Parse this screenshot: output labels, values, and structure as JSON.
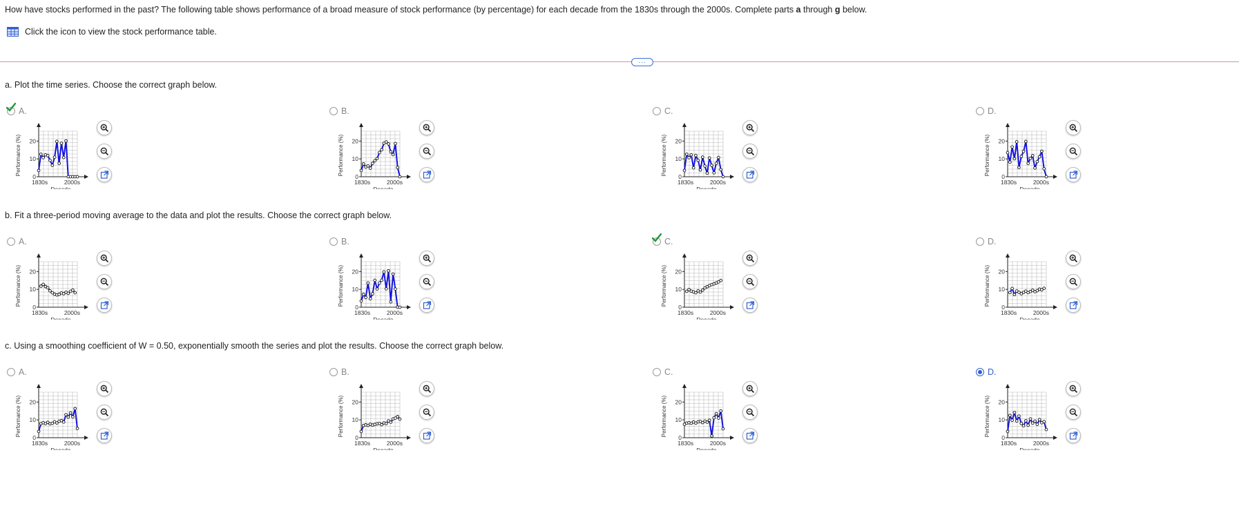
{
  "intro": {
    "before_bold": "How have stocks performed in the past? The following table shows performance of a broad measure of stock performance (by percentage) for each decade from the 1830s through the 2000s. Complete parts ",
    "bold_a": "a",
    "middle": " through ",
    "bold_g": "g",
    "after": " below."
  },
  "table_link": {
    "label": "Click the icon to view the stock performance table.",
    "icon": "table-grid-icon"
  },
  "more_button": {
    "label": "..."
  },
  "graph_labels": {
    "ylabel": "Performance (%)",
    "xlabel": "Decade",
    "x_start": "1830s",
    "x_end": "2000s",
    "y_ticks": [
      "0",
      "10",
      "20"
    ]
  },
  "colors": {
    "line": "#1414dd",
    "accent": "#2f5fd0",
    "check": "#1a9a3a"
  },
  "parts": [
    {
      "id": "a",
      "question": "a. Plot the time series. Choose the correct graph below.",
      "options": [
        {
          "label": "A.",
          "state": "correct-check",
          "chart_data": {
            "type": "line",
            "values": [
              3.5,
              12.6,
              10.7,
              12.3,
              11.9,
              9.2,
              6.4,
              11.0,
              19.8,
              7.5,
              18.8,
              10.8,
              20.1,
              0,
              0,
              0,
              0,
              0
            ]
          }
        },
        {
          "label": "B.",
          "state": "unselected",
          "chart_data": {
            "type": "line",
            "values": [
              3.5,
              7.2,
              5.5,
              6.1,
              4.8,
              7.5,
              9.0,
              10.2,
              13.6,
              15.1,
              18.8,
              19.5,
              18.4,
              14.0,
              12.4,
              18.6,
              5.2,
              0
            ]
          }
        },
        {
          "label": "C.",
          "state": "unselected",
          "chart_data": {
            "type": "line",
            "values": [
              3.5,
              12.6,
              10.7,
              12.3,
              5.0,
              11.9,
              9.2,
              3.8,
              11.0,
              6.0,
              2.0,
              10.5,
              6.4,
              2.2,
              7.5,
              10.8,
              4.0,
              0
            ]
          }
        },
        {
          "label": "D.",
          "state": "unselected",
          "chart_data": {
            "type": "line",
            "values": [
              13.5,
              8.2,
              16.7,
              10.1,
              19.6,
              5.2,
              11.4,
              14.2,
              19.8,
              7.5,
              10.3,
              11.8,
              4.9,
              8.5,
              11.2,
              14.3,
              4.5,
              0
            ]
          }
        }
      ]
    },
    {
      "id": "b",
      "question": "b. Fit a three-period moving average to the data and plot the results. Choose the correct graph below.",
      "options": [
        {
          "label": "A.",
          "state": "unselected",
          "chart_data": {
            "type": "line",
            "values": [
              null,
              11.8,
              12.8,
              11.6,
              10.9,
              9.2,
              8.1,
              7.3,
              6.9,
              7.2,
              8.0,
              7.6,
              8.4,
              7.8,
              8.9,
              9.6,
              8.1,
              null
            ]
          }
        },
        {
          "label": "B.",
          "state": "unselected",
          "chart_data": {
            "type": "line",
            "values": [
              3.5,
              7.2,
              5.5,
              13.6,
              4.8,
              7.5,
              15.1,
              10.2,
              13.6,
              15.1,
              19.8,
              10.3,
              20.4,
              3.0,
              18.6,
              10.2,
              0,
              0
            ]
          }
        },
        {
          "label": "C.",
          "state": "correct-check",
          "chart_data": {
            "type": "line",
            "values": [
              null,
              8.9,
              9.9,
              9.0,
              8.6,
              8.1,
              9.2,
              8.5,
              9.6,
              10.8,
              11.5,
              12.1,
              12.7,
              13.1,
              13.6,
              14.2,
              15.0,
              null
            ]
          }
        },
        {
          "label": "D.",
          "state": "unselected",
          "chart_data": {
            "type": "line",
            "values": [
              null,
              8.2,
              10.5,
              7.1,
              9.1,
              8.4,
              7.6,
              8.3,
              9.0,
              8.2,
              8.8,
              9.5,
              8.7,
              9.3,
              10.1,
              9.8,
              10.6,
              null
            ]
          }
        }
      ]
    },
    {
      "id": "c",
      "question": "c. Using a smoothing coefficient of W = 0.50, exponentially smooth the series and plot the results. Choose the correct graph below.",
      "options": [
        {
          "label": "A.",
          "state": "unselected",
          "chart_data": {
            "type": "line",
            "values": [
              3.5,
              7.9,
              8.4,
              7.9,
              8.6,
              7.8,
              8.1,
              8.9,
              8.3,
              9.2,
              9.6,
              8.8,
              12.9,
              11.6,
              13.9,
              11.7,
              16.3,
              5.2
            ]
          }
        },
        {
          "label": "B.",
          "state": "unselected",
          "chart_data": {
            "type": "line",
            "values": [
              3.5,
              6.8,
              7.2,
              6.9,
              7.5,
              7.1,
              7.4,
              7.8,
              8.0,
              7.3,
              8.3,
              7.9,
              9.4,
              8.7,
              10.5,
              11.0,
              11.8,
              10.4
            ]
          }
        },
        {
          "label": "C.",
          "state": "unselected",
          "chart_data": {
            "type": "line",
            "values": [
              7.5,
              8.2,
              8.4,
              8.1,
              8.8,
              8.2,
              8.9,
              9.1,
              8.5,
              9.3,
              8.7,
              9.8,
              1.0,
              11.2,
              13.5,
              11.0,
              15.0,
              5.0
            ]
          }
        },
        {
          "label": "D.",
          "state": "selected",
          "chart_data": {
            "type": "line",
            "values": [
              3.5,
              12.5,
              9.8,
              14.1,
              9.4,
              12.1,
              8.0,
              6.7,
              9.5,
              7.0,
              10.5,
              8.2,
              9.3,
              7.5,
              10.1,
              8.4,
              9.0,
              4.6
            ]
          }
        }
      ]
    }
  ]
}
